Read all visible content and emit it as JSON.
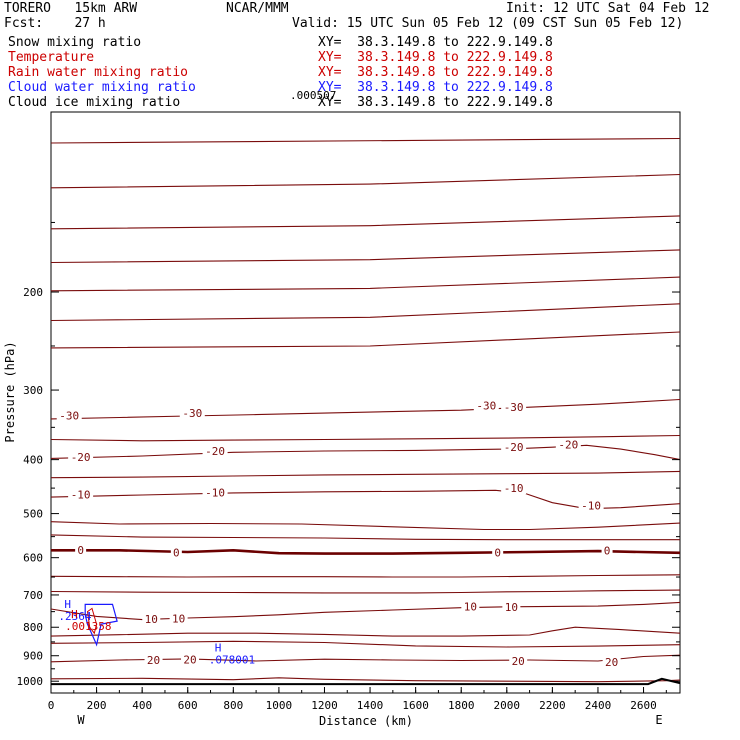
{
  "header": {
    "model": "TORERO   15km ARW",
    "center": "NCAR/MMM",
    "init": "Init: 12 UTC Sat 04 Feb 12",
    "fcst": "Fcst:    27 h",
    "valid": "Valid: 15 UTC Sun 05 Feb 12 (09 CST Sun 05 Feb 12)"
  },
  "fields": [
    {
      "name": "Snow mixing ratio",
      "xy": "XY=  38.3.149.8 to 222.9.149.8",
      "color": "#000000"
    },
    {
      "name": "Temperature",
      "xy": "XY=  38.3.149.8 to 222.9.149.8",
      "color": "#cc0000"
    },
    {
      "name": "Rain water mixing ratio",
      "xy": "XY=  38.3.149.8 to 222.9.149.8",
      "color": "#cc0000"
    },
    {
      "name": "Cloud water mixing ratio",
      "xy": "XY=  38.3.149.8 to 222.9.149.8",
      "color": "#1a1aff"
    },
    {
      "name": "Cloud ice mixing ratio",
      "xy": "XY=  38.3.149.8 to 222.9.149.8",
      "color": "#000000"
    }
  ],
  "chart_data": {
    "type": "line",
    "xlabel": "Distance (km)",
    "ylabel": "Pressure (hPa)",
    "xlim": [
      0,
      2760
    ],
    "ylim": [
      1050,
      95
    ],
    "x_ticks": [
      "0",
      "200",
      "400",
      "600",
      "800",
      "1000",
      "1200",
      "1400",
      "1600",
      "1800",
      "2000",
      "2200",
      "2400",
      "2600"
    ],
    "y_ticks": [
      "200",
      "300",
      "400",
      "500",
      "600",
      "700",
      "800",
      "900",
      "1000"
    ],
    "left_end_label": "W",
    "right_end_label": "E",
    "colors": {
      "temperature": "#7a0c0c",
      "freezing_line": "#6b0000",
      "cloud_water": "#1a1aff",
      "rain_water": "#cc0000",
      "ground": "#000000"
    },
    "isotherm_labels": [
      {
        "text": "-30",
        "x": 80,
        "p": 333
      },
      {
        "text": "-30",
        "x": 620,
        "p": 330
      },
      {
        "text": "-30",
        "x": 1910,
        "p": 320
      },
      {
        "text": "-30",
        "x": 2030,
        "p": 322
      },
      {
        "text": "-20",
        "x": 130,
        "p": 396
      },
      {
        "text": "-20",
        "x": 720,
        "p": 386
      },
      {
        "text": "-20",
        "x": 2030,
        "p": 380
      },
      {
        "text": "-20",
        "x": 2270,
        "p": 376
      },
      {
        "text": "-10",
        "x": 130,
        "p": 462
      },
      {
        "text": "-10",
        "x": 720,
        "p": 458
      },
      {
        "text": "-10",
        "x": 2030,
        "p": 450
      },
      {
        "text": "-10",
        "x": 2370,
        "p": 484
      },
      {
        "text": "0",
        "x": 130,
        "p": 581
      },
      {
        "text": "0",
        "x": 550,
        "p": 587
      },
      {
        "text": "0",
        "x": 1960,
        "p": 587
      },
      {
        "text": "0",
        "x": 2440,
        "p": 583
      },
      {
        "text": "10",
        "x": 1840,
        "p": 734
      },
      {
        "text": "10",
        "x": 2020,
        "p": 735
      },
      {
        "text": "10",
        "x": 440,
        "p": 773
      },
      {
        "text": "10",
        "x": 560,
        "p": 771
      },
      {
        "text": "20",
        "x": 450,
        "p": 917
      },
      {
        "text": "20",
        "x": 610,
        "p": 915
      },
      {
        "text": "20",
        "x": 2050,
        "p": 920
      },
      {
        "text": "20",
        "x": 2460,
        "p": 923
      }
    ],
    "highs": [
      {
        "letter": "H",
        "value": ".2364",
        "x": 120,
        "p": 757,
        "color": "#1a1aff"
      },
      {
        "letter": "H",
        "value": ".001358",
        "x": 150,
        "p": 789,
        "color": "#cc0000"
      },
      {
        "letter": "H",
        "value": ".078001",
        "x": 780,
        "p": 907,
        "color": "#1a1aff"
      }
    ],
    "overlap_label": ".000507",
    "isotherms": [
      {
        "level": -60,
        "x": [
          0,
          2760
        ],
        "p": [
          108,
          106
        ]
      },
      {
        "level": -55,
        "x": [
          0,
          1400,
          2760
        ],
        "p": [
          130,
          128,
          123
        ]
      },
      {
        "level": -50,
        "x": [
          0,
          1400,
          2760
        ],
        "p": [
          154,
          152,
          146
        ]
      },
      {
        "level": -45,
        "x": [
          0,
          1400,
          2760
        ],
        "p": [
          177,
          175,
          168
        ]
      },
      {
        "level": -40,
        "x": [
          0,
          1400,
          2760
        ],
        "p": [
          199,
          197,
          188
        ]
      },
      {
        "level": -35,
        "x": [
          0,
          1400,
          2760
        ],
        "p": [
          225,
          222,
          210
        ]
      },
      {
        "level": -35,
        "x": [
          0,
          1400,
          2760
        ],
        "p": [
          252,
          250,
          236
        ]
      },
      {
        "level": -30,
        "x": [
          0,
          300,
          600,
          900,
          1200,
          1500,
          1800,
          2100,
          2400,
          2760
        ],
        "p": [
          338,
          336,
          334,
          332,
          330,
          328,
          326,
          322,
          318,
          312
        ]
      },
      {
        "level": -25,
        "x": [
          0,
          400,
          800,
          1200,
          1600,
          2000,
          2400,
          2760
        ],
        "p": [
          368,
          370,
          369,
          368,
          367,
          366,
          364,
          362
        ]
      },
      {
        "level": -20,
        "x": [
          0,
          400,
          800,
          1200,
          1600,
          2000,
          2200,
          2350,
          2500,
          2650,
          2760
        ],
        "p": [
          398,
          394,
          388,
          386,
          385,
          383,
          380,
          377,
          383,
          392,
          400
        ]
      },
      {
        "level": -15,
        "x": [
          0,
          400,
          800,
          1200,
          1600,
          2000,
          2400,
          2760
        ],
        "p": [
          431,
          430,
          428,
          426,
          425,
          424,
          423,
          420
        ]
      },
      {
        "level": -10,
        "x": [
          0,
          400,
          800,
          1200,
          1600,
          1950,
          2080,
          2200,
          2350,
          2500,
          2760
        ],
        "p": [
          467,
          463,
          459,
          457,
          456,
          454,
          460,
          478,
          490,
          488,
          480
        ]
      },
      {
        "level": -5,
        "x": [
          0,
          300,
          700,
          1100,
          1500,
          1900,
          2100,
          2400,
          2760
        ],
        "p": [
          517,
          522,
          521,
          522,
          528,
          534,
          534,
          529,
          520
        ]
      },
      {
        "level": -2,
        "x": [
          0,
          400,
          800,
          1200,
          1600,
          2000,
          2400,
          2760
        ],
        "p": [
          546,
          551,
          552,
          553,
          556,
          557,
          557,
          557
        ]
      },
      {
        "level": 0,
        "x": [
          0,
          300,
          600,
          800,
          1000,
          1200,
          1500,
          1800,
          2100,
          2400,
          2760
        ],
        "p": [
          582,
          582,
          586,
          582,
          589,
          590,
          590,
          588,
          586,
          584,
          588
        ]
      },
      {
        "level": 5,
        "x": [
          0,
          300,
          600,
          900,
          1200,
          1500,
          1800,
          2100,
          2400,
          2760
        ],
        "p": [
          648,
          649,
          650,
          649,
          649,
          650,
          650,
          648,
          646,
          644
        ]
      },
      {
        "level": 10,
        "x": [
          0,
          400,
          800,
          1200,
          1600,
          1800,
          2000,
          2200,
          2400,
          2600,
          2760
        ],
        "p": [
          690,
          692,
          693,
          694,
          694,
          693,
          691,
          690,
          688,
          687,
          686
        ]
      },
      {
        "level": 10,
        "x": [
          0,
          200,
          400,
          600,
          800,
          1000,
          1200,
          1500,
          1800,
          2000,
          2200,
          2400,
          2600,
          2760
        ],
        "p": [
          742,
          765,
          775,
          770,
          766,
          760,
          752,
          745,
          738,
          735,
          734,
          733,
          728,
          722
        ]
      },
      {
        "level": 15,
        "x": [
          0,
          300,
          600,
          900,
          1200,
          1500,
          1800,
          2100,
          2200,
          2300,
          2500,
          2760
        ],
        "p": [
          830,
          825,
          820,
          820,
          824,
          830,
          830,
          826,
          812,
          800,
          808,
          820
        ]
      },
      {
        "level": 18,
        "x": [
          0,
          400,
          800,
          1200,
          1600,
          2000,
          2400,
          2760
        ],
        "p": [
          855,
          852,
          848,
          852,
          864,
          868,
          865,
          860
        ]
      },
      {
        "level": 20,
        "x": [
          0,
          300,
          600,
          900,
          1200,
          1500,
          1800,
          2100,
          2400,
          2600,
          2760
        ],
        "p": [
          923,
          916,
          912,
          920,
          913,
          916,
          918,
          916,
          920,
          903,
          898
        ]
      },
      {
        "level": 25,
        "x": [
          0,
          400,
          800,
          1000,
          1200,
          1600,
          2000,
          2400,
          2700,
          2760
        ],
        "p": [
          990,
          988,
          994,
          986,
          992,
          998,
          1000,
          1002,
          998,
          995
        ]
      }
    ],
    "terrain": {
      "x": [
        0,
        2620,
        2680,
        2760
      ],
      "p": [
        1012,
        1012,
        990,
        1008
      ]
    },
    "cloud_water_contour": {
      "x": [
        150,
        270,
        290,
        220,
        200,
        160,
        150
      ],
      "p": [
        728,
        728,
        780,
        790,
        860,
        790,
        760
      ]
    },
    "rain_contour": {
      "x": [
        160,
        180,
        200,
        190,
        170
      ],
      "p": [
        750,
        740,
        790,
        820,
        800
      ]
    }
  }
}
